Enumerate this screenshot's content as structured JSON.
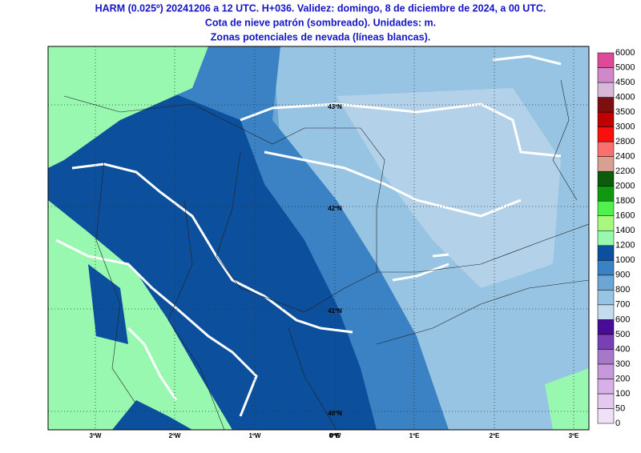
{
  "header": {
    "lines": [
      "HARM (0.025º) 20241206 a 12 UTC. H+036. Validez: domingo, 8 de diciembre de 2024, a 00 UTC.",
      "Cota de nieve patrón (sombreado). Unidades: m.",
      "Zonas potenciales de nevada (líneas blancas)."
    ]
  },
  "map": {
    "lat_labels": [
      "43ºN",
      "42ºN",
      "41ºN",
      "40ºN"
    ],
    "lon_labels": [
      "3ºW",
      "2ºW",
      "1ºW",
      "0ºW",
      "0ºE",
      "1ºE",
      "2ºE",
      "3ºE"
    ]
  },
  "colorbar": {
    "levels": [
      0,
      50,
      100,
      200,
      300,
      400,
      500,
      600,
      700,
      800,
      900,
      1000,
      1200,
      1400,
      1600,
      1800,
      2000,
      2200,
      2400,
      2800,
      3000,
      3500,
      4000,
      4500,
      5000,
      6000
    ],
    "colors": [
      "#eee0f6",
      "#e4c8f0",
      "#d8b0e8",
      "#c898dc",
      "#a878c8",
      "#7840b0",
      "#480c98",
      "#c4dcee",
      "#98c4e4",
      "#6ca6d6",
      "#3a82c4",
      "#0c4f9c",
      "#98f8b0",
      "#a8f880",
      "#50f050",
      "#109810",
      "#0c5c0c",
      "#d8a090",
      "#f87070",
      "#f81010",
      "#c00000",
      "#7c1010",
      "#d8b8d8",
      "#d088c8",
      "#e04898"
    ]
  }
}
